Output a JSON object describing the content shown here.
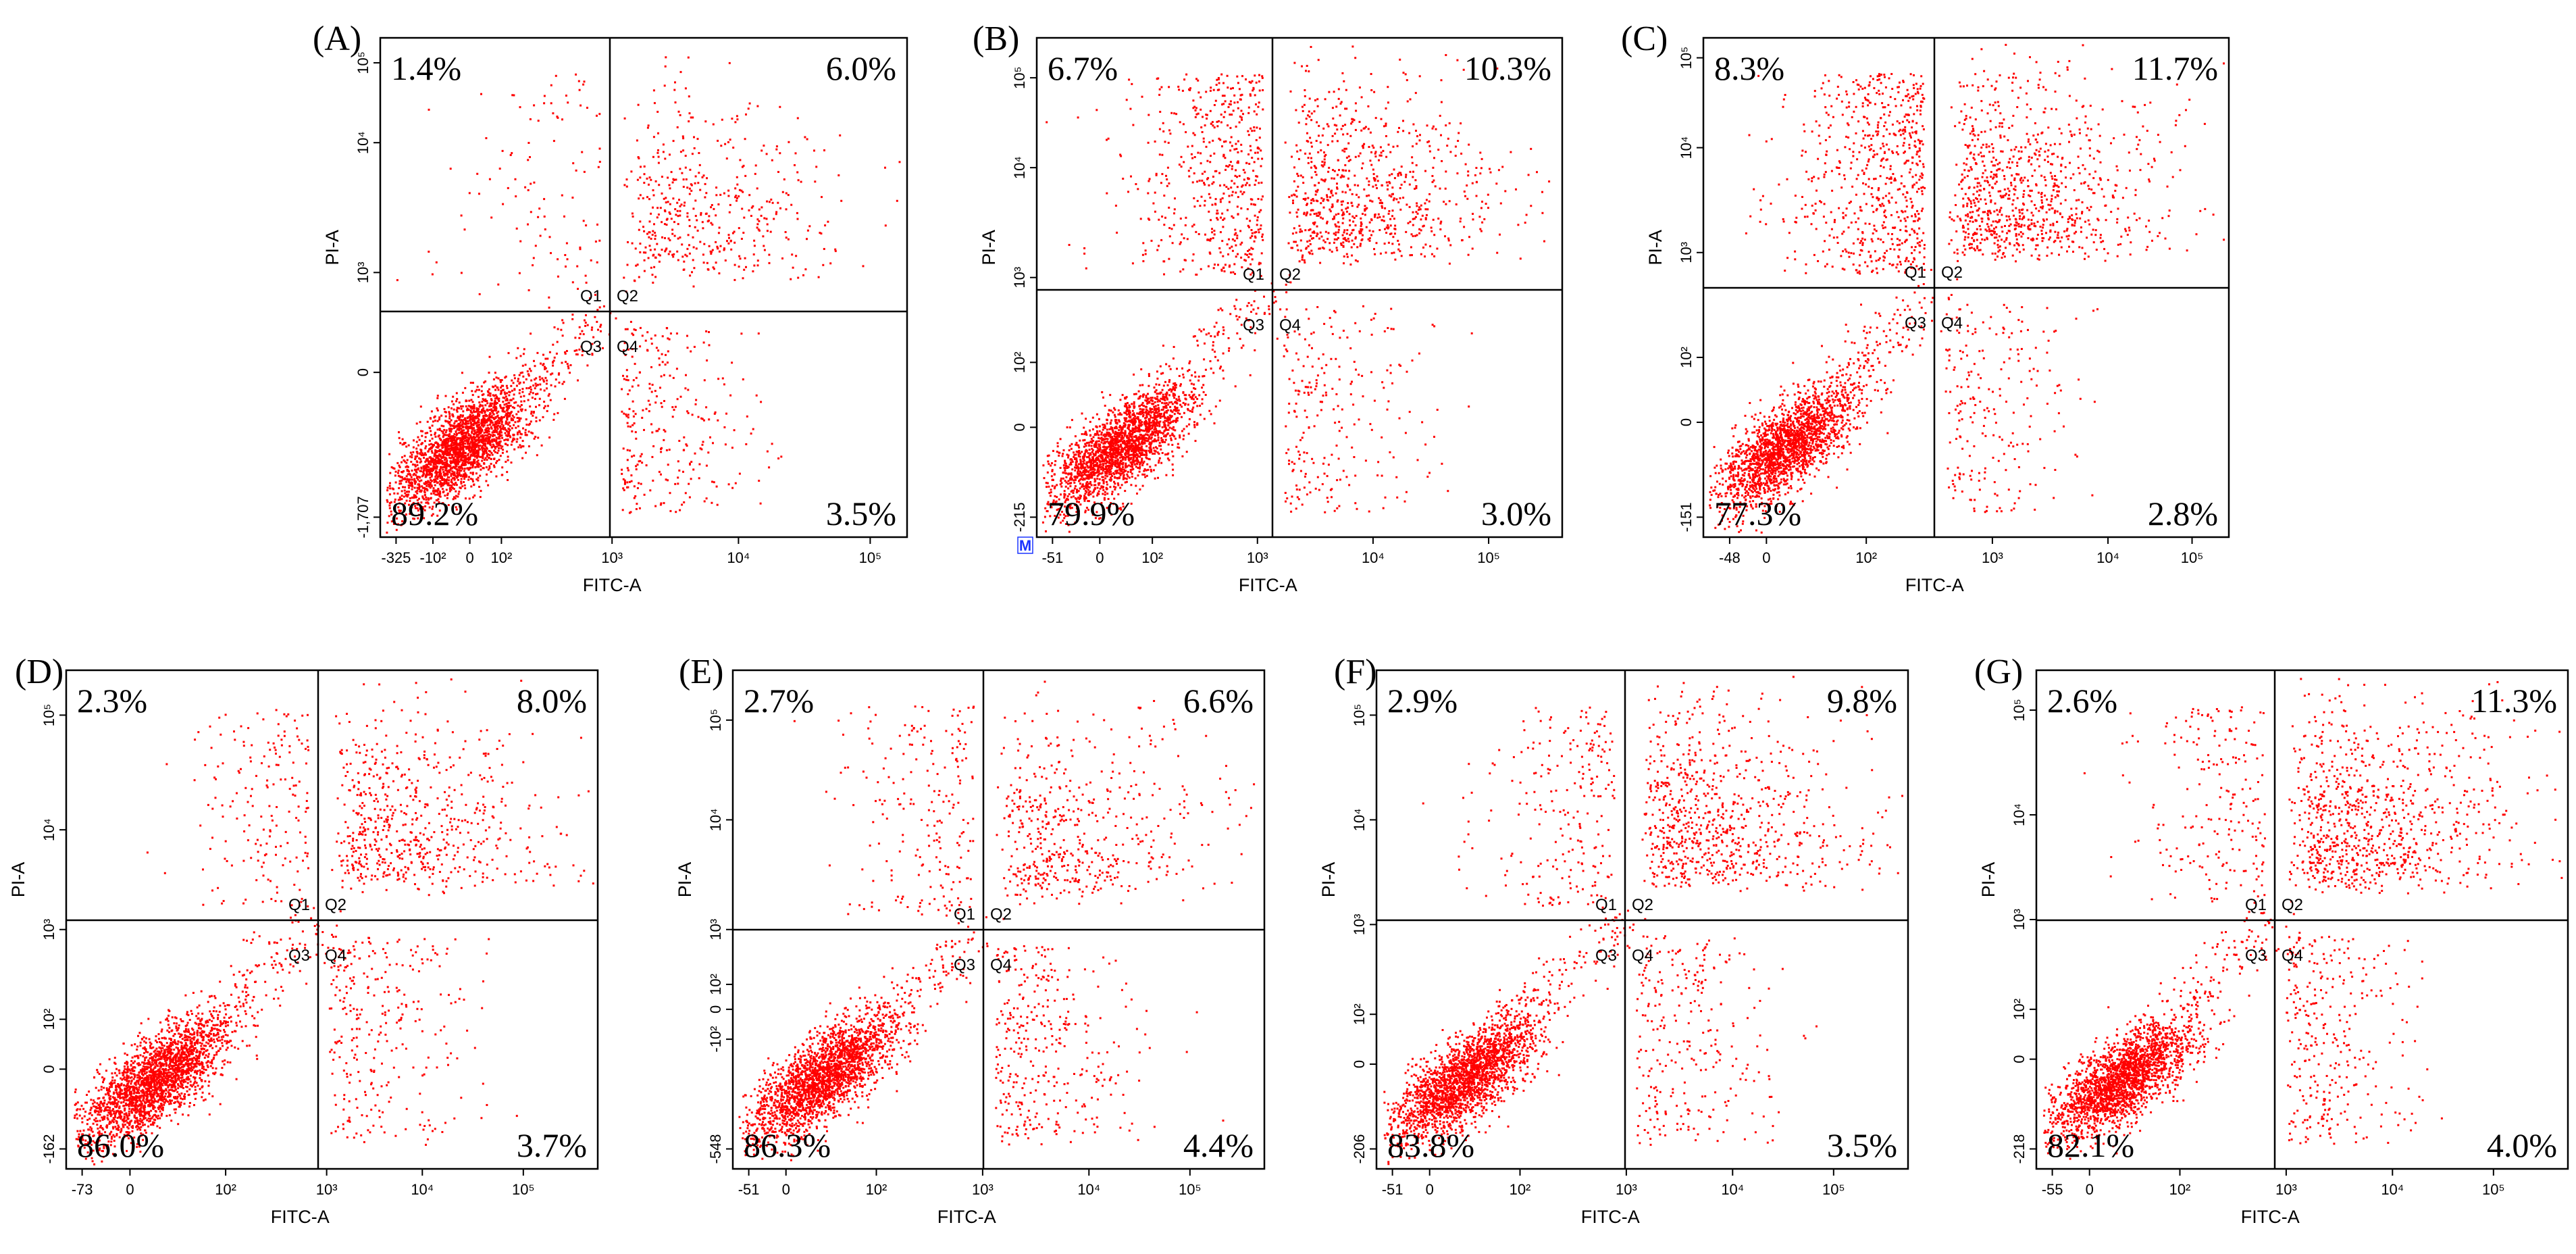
{
  "figure": {
    "dot_color": "#ff0000",
    "line_color": "#000000",
    "background": "#ffffff"
  },
  "chart_data": [
    {
      "type": "scatter",
      "panel": "(A)",
      "xlabel": "FITC-A",
      "ylabel": "PI-A",
      "x_ticks": [
        "-325",
        "-10²",
        "0",
        "10²",
        "10³",
        "10⁴",
        "10⁵"
      ],
      "y_ticks": [
        "-1,707",
        "0",
        "10³",
        "10⁴",
        "10⁵"
      ],
      "gates": [
        "Q1",
        "Q2",
        "Q3",
        "Q4"
      ],
      "quadrants": {
        "Q1": 1.4,
        "Q2": 6.0,
        "Q3": 89.2,
        "Q4": 3.5
      },
      "quadrant_labels": {
        "Q1": "1.4%",
        "Q2": "6.0%",
        "Q3": "89.2%",
        "Q4": "3.5%"
      },
      "badge": null
    },
    {
      "type": "scatter",
      "panel": "(B)",
      "xlabel": "FITC-A",
      "ylabel": "PI-A",
      "x_ticks": [
        "-51",
        "0",
        "10²",
        "10³",
        "10⁴",
        "10⁵"
      ],
      "y_ticks": [
        "-215",
        "0",
        "10²",
        "10³",
        "10⁴",
        "10⁵"
      ],
      "gates": [
        "Q1",
        "Q2",
        "Q3",
        "Q4"
      ],
      "quadrants": {
        "Q1": 6.7,
        "Q2": 10.3,
        "Q3": 79.9,
        "Q4": 3.0
      },
      "quadrant_labels": {
        "Q1": "6.7%",
        "Q2": "10.3%",
        "Q3": "79.9%",
        "Q4": "3.0%"
      },
      "badge": "M"
    },
    {
      "type": "scatter",
      "panel": "(C)",
      "xlabel": "FITC-A",
      "ylabel": "PI-A",
      "x_ticks": [
        "-48",
        "0",
        "10²",
        "10³",
        "10⁴",
        "10⁵"
      ],
      "y_ticks": [
        "-151",
        "0",
        "10²",
        "10³",
        "10⁴",
        "10⁵"
      ],
      "gates": [
        "Q1",
        "Q2",
        "Q3",
        "Q4"
      ],
      "quadrants": {
        "Q1": 8.3,
        "Q2": 11.7,
        "Q3": 77.3,
        "Q4": 2.8
      },
      "quadrant_labels": {
        "Q1": "8.3%",
        "Q2": "11.7%",
        "Q3": "77.3%",
        "Q4": "2.8%"
      },
      "badge": null
    },
    {
      "type": "scatter",
      "panel": "(D)",
      "xlabel": "FITC-A",
      "ylabel": "PI-A",
      "x_ticks": [
        "-73",
        "0",
        "10²",
        "10³",
        "10⁴",
        "10⁵"
      ],
      "y_ticks": [
        "-162",
        "0",
        "10²",
        "10³",
        "10⁴",
        "10⁵"
      ],
      "gates": [
        "Q1",
        "Q2",
        "Q3",
        "Q4"
      ],
      "quadrants": {
        "Q1": 2.3,
        "Q2": 8.0,
        "Q3": 86.0,
        "Q4": 3.7
      },
      "quadrant_labels": {
        "Q1": "2.3%",
        "Q2": "8.0%",
        "Q3": "86.0%",
        "Q4": "3.7%"
      },
      "badge": null
    },
    {
      "type": "scatter",
      "panel": "(E)",
      "xlabel": "FITC-A",
      "ylabel": "PI-A",
      "x_ticks": [
        "-51",
        "0",
        "10²",
        "10³",
        "10⁴",
        "10⁵"
      ],
      "y_ticks": [
        "-548",
        "-10²",
        "0",
        "10²",
        "10³",
        "10⁴",
        "10⁵"
      ],
      "gates": [
        "Q1",
        "Q2",
        "Q3",
        "Q4"
      ],
      "quadrants": {
        "Q1": 2.7,
        "Q2": 6.6,
        "Q3": 86.3,
        "Q4": 4.4
      },
      "quadrant_labels": {
        "Q1": "2.7%",
        "Q2": "6.6%",
        "Q3": "86.3%",
        "Q4": "4.4%"
      },
      "badge": null
    },
    {
      "type": "scatter",
      "panel": "(F)",
      "xlabel": "FITC-A",
      "ylabel": "PI-A",
      "x_ticks": [
        "-51",
        "0",
        "10²",
        "10³",
        "10⁴",
        "10⁵"
      ],
      "y_ticks": [
        "-206",
        "0",
        "10²",
        "10³",
        "10⁴",
        "10⁵"
      ],
      "gates": [
        "Q1",
        "Q2",
        "Q3",
        "Q4"
      ],
      "quadrants": {
        "Q1": 2.9,
        "Q2": 9.8,
        "Q3": 83.8,
        "Q4": 3.5
      },
      "quadrant_labels": {
        "Q1": "2.9%",
        "Q2": "9.8%",
        "Q3": "83.8%",
        "Q4": "3.5%"
      },
      "badge": null
    },
    {
      "type": "scatter",
      "panel": "(G)",
      "xlabel": "FITC-A",
      "ylabel": "PI-A",
      "x_ticks": [
        "-55",
        "0",
        "10²",
        "10³",
        "10⁴",
        "10⁵"
      ],
      "y_ticks": [
        "-218",
        "0",
        "10²",
        "10³",
        "10⁴",
        "10⁵"
      ],
      "gates": [
        "Q1",
        "Q2",
        "Q3",
        "Q4"
      ],
      "quadrants": {
        "Q1": 2.6,
        "Q2": 11.3,
        "Q3": 82.1,
        "Q4": 4.0
      },
      "quadrant_labels": {
        "Q1": "2.6%",
        "Q2": "11.3%",
        "Q3": "82.1%",
        "Q4": "4.0%"
      },
      "badge": null
    }
  ]
}
